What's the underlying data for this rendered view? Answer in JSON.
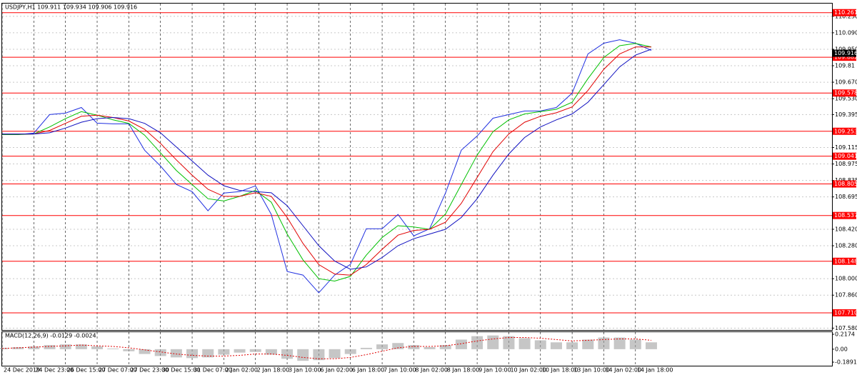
{
  "chart_data": [
    {
      "type": "line",
      "title": "USDJPY,H1  109.911 109.934 109.906 109.916",
      "categories": [
        "24 Dec 2019",
        null,
        "24 Dec 23:00",
        null,
        "26 Dec 15:00",
        null,
        "27 Dec 07:00",
        null,
        "27 Dec 23:00",
        null,
        "30 Dec 15:00",
        null,
        "31 Dec 07:00",
        null,
        "2 Jan 02:00",
        null,
        "2 Jan 18:00",
        null,
        "3 Jan 10:00",
        null,
        "6 Jan 02:00",
        null,
        "6 Jan 18:00",
        null,
        "7 Jan 10:00",
        null,
        "8 Jan 02:00",
        null,
        "8 Jan 18:00",
        null,
        "9 Jan 10:00",
        null,
        "10 Jan 02:00",
        null,
        "10 Jan 18:00",
        null,
        "13 Jan 10:00",
        null,
        "14 Jan 02:00",
        null,
        "14 Jan 18:00",
        null
      ],
      "series": [
        {
          "color": "#2030e0",
          "values": [
            109.225,
            109.225,
            109.237,
            109.395,
            109.407,
            109.455,
            109.322,
            109.316,
            109.316,
            109.092,
            108.958,
            108.801,
            108.74,
            108.577,
            108.728,
            108.74,
            108.789,
            108.546,
            108.061,
            108.031,
            107.88,
            108.031,
            108.122,
            108.425,
            108.425,
            108.546,
            108.364,
            108.425,
            108.728,
            109.092,
            109.213,
            109.364,
            109.395,
            109.425,
            109.425,
            109.455,
            109.577,
            109.91,
            110.001,
            110.031,
            110.001,
            109.94
          ]
        },
        {
          "color": "#00c000",
          "values": [
            109.225,
            109.225,
            109.23,
            109.29,
            109.36,
            109.42,
            109.39,
            109.35,
            109.32,
            109.22,
            109.07,
            108.92,
            108.8,
            108.68,
            108.66,
            108.7,
            108.75,
            108.65,
            108.38,
            108.16,
            108.0,
            107.98,
            108.02,
            108.2,
            108.35,
            108.45,
            108.44,
            108.42,
            108.55,
            108.8,
            109.05,
            109.25,
            109.35,
            109.4,
            109.42,
            109.44,
            109.5,
            109.7,
            109.88,
            109.98,
            110.0,
            109.97
          ]
        },
        {
          "color": "#e00000",
          "values": [
            109.23,
            109.23,
            109.23,
            109.26,
            109.32,
            109.38,
            109.39,
            109.37,
            109.34,
            109.27,
            109.15,
            109.01,
            108.88,
            108.76,
            108.7,
            108.7,
            108.73,
            108.7,
            108.52,
            108.3,
            108.12,
            108.04,
            108.03,
            108.12,
            108.25,
            108.37,
            108.41,
            108.42,
            108.48,
            108.64,
            108.86,
            109.08,
            109.23,
            109.33,
            109.38,
            109.41,
            109.46,
            109.6,
            109.78,
            109.91,
            109.97,
            109.97
          ]
        },
        {
          "color": "#1010c0",
          "values": [
            109.23,
            109.23,
            109.23,
            109.24,
            109.28,
            109.33,
            109.36,
            109.37,
            109.36,
            109.32,
            109.24,
            109.12,
            109.0,
            108.88,
            108.79,
            108.75,
            108.74,
            108.73,
            108.62,
            108.45,
            108.28,
            108.15,
            108.08,
            108.1,
            108.18,
            108.28,
            108.34,
            108.38,
            108.42,
            108.52,
            108.68,
            108.88,
            109.06,
            109.2,
            109.29,
            109.35,
            109.4,
            109.5,
            109.65,
            109.8,
            109.9,
            109.95
          ]
        }
      ],
      "ylim": [
        107.57,
        110.32
      ],
      "yticks": [
        {
          "value": 110.23,
          "label": "110.230"
        },
        {
          "value": 110.09,
          "label": "110.090"
        },
        {
          "value": 109.95,
          "label": "109.950"
        },
        109.81,
        {
          "value": 109.67,
          "label": "109.670"
        },
        {
          "value": 109.53,
          "label": "109.530"
        },
        109.395,
        109.115,
        108.975,
        108.835,
        108.695,
        {
          "value": 108.42,
          "label": "108.420"
        },
        {
          "value": 108.28,
          "label": "108.280"
        },
        {
          "value": 108.0,
          "label": "108.000"
        },
        {
          "value": 107.86,
          "label": "107.860"
        },
        {
          "value": 107.58,
          "label": "107.580"
        }
      ],
      "levels": [
        110.261,
        109.882,
        109.578,
        109.253,
        109.041,
        108.805,
        108.537,
        108.148,
        {
          "value": 107.71,
          "label": "107.710"
        }
      ],
      "level_color": "#ff0000",
      "bid": 109.916,
      "grid": true
    },
    {
      "type": "bar",
      "title": "MACD(12,26,9) -0.0129 -0.0024",
      "values": [
        0.02,
        0.03,
        0.04,
        0.06,
        0.07,
        0.07,
        0.04,
        0.01,
        -0.03,
        -0.07,
        -0.1,
        -0.12,
        -0.13,
        -0.12,
        -0.08,
        -0.05,
        -0.04,
        -0.08,
        -0.14,
        -0.17,
        -0.16,
        -0.13,
        -0.07,
        0.02,
        0.07,
        0.09,
        0.06,
        0.03,
        0.06,
        0.14,
        0.19,
        0.2,
        0.19,
        0.16,
        0.13,
        0.1,
        0.1,
        0.14,
        0.17,
        0.17,
        0.14,
        0.1
      ],
      "color": "#a0a0a0",
      "signal": {
        "color": "#e00000",
        "values": [
          0.01,
          0.02,
          0.03,
          0.04,
          0.05,
          0.06,
          0.05,
          0.04,
          0.02,
          -0.01,
          -0.04,
          -0.07,
          -0.09,
          -0.1,
          -0.1,
          -0.09,
          -0.07,
          -0.07,
          -0.09,
          -0.12,
          -0.14,
          -0.14,
          -0.12,
          -0.08,
          -0.03,
          0.02,
          0.04,
          0.04,
          0.05,
          0.08,
          0.12,
          0.15,
          0.17,
          0.17,
          0.16,
          0.14,
          0.12,
          0.13,
          0.14,
          0.15,
          0.15,
          0.13
        ]
      },
      "ylim": [
        -0.1891,
        0.2174
      ],
      "yticks": [
        0.2174,
        {
          "value": 0,
          "label": "0.00"
        },
        -0.1891
      ]
    }
  ]
}
